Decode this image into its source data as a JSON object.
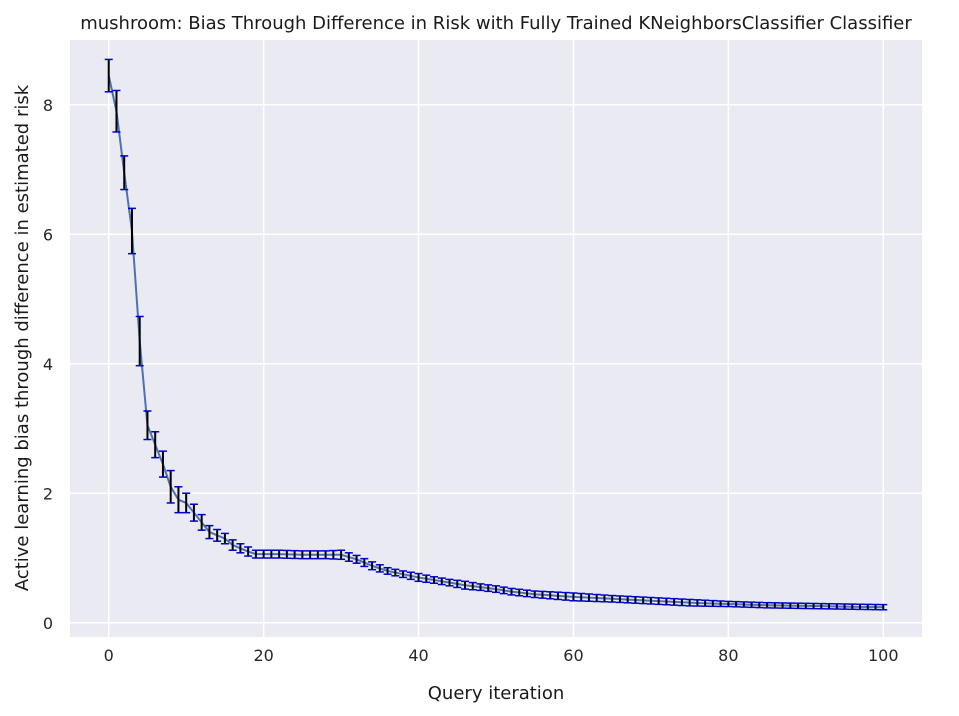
{
  "chart_data": {
    "type": "line",
    "title": "mushroom: Bias Through Difference in Risk with Fully Trained KNeighborsClassifier Classifier",
    "xlabel": "Query iteration",
    "ylabel": "Active learning bias through difference in estimated risk",
    "xlim": [
      -5,
      105
    ],
    "ylim": [
      -0.22,
      9.0
    ],
    "xticks": [
      0,
      20,
      40,
      60,
      80,
      100
    ],
    "yticks": [
      0,
      2,
      4,
      6,
      8
    ],
    "grid": true,
    "legend": "none",
    "colors": {
      "background": "#eaeaf2",
      "grid": "#ffffff",
      "line": "#4c72b0",
      "errorbar": "#000000",
      "cap": "#0000cc"
    },
    "keypoints": {
      "x": [
        0,
        1,
        2,
        3,
        4,
        5,
        6,
        7,
        8,
        9,
        10,
        11,
        12,
        13,
        14,
        15,
        16,
        17,
        18,
        19,
        20,
        22,
        25,
        28,
        30,
        32,
        34,
        36,
        38,
        40,
        42,
        44,
        46,
        48,
        50,
        52,
        55,
        60,
        65,
        70,
        75,
        80,
        85,
        90,
        95,
        100
      ],
      "y": [
        8.45,
        7.9,
        6.95,
        6.05,
        4.35,
        3.05,
        2.75,
        2.45,
        2.1,
        1.9,
        1.85,
        1.7,
        1.55,
        1.4,
        1.35,
        1.3,
        1.2,
        1.15,
        1.1,
        1.06,
        1.06,
        1.06,
        1.05,
        1.05,
        1.05,
        0.98,
        0.88,
        0.8,
        0.75,
        0.7,
        0.66,
        0.62,
        0.58,
        0.55,
        0.52,
        0.48,
        0.44,
        0.4,
        0.37,
        0.34,
        0.31,
        0.29,
        0.27,
        0.26,
        0.25,
        0.24
      ],
      "yerr": [
        0.25,
        0.32,
        0.26,
        0.35,
        0.38,
        0.22,
        0.2,
        0.2,
        0.25,
        0.2,
        0.15,
        0.13,
        0.12,
        0.1,
        0.09,
        0.08,
        0.08,
        0.07,
        0.07,
        0.06,
        0.06,
        0.06,
        0.06,
        0.06,
        0.07,
        0.06,
        0.06,
        0.05,
        0.05,
        0.06,
        0.05,
        0.05,
        0.06,
        0.05,
        0.05,
        0.05,
        0.05,
        0.06,
        0.05,
        0.05,
        0.05,
        0.04,
        0.04,
        0.04,
        0.04,
        0.04
      ]
    }
  }
}
